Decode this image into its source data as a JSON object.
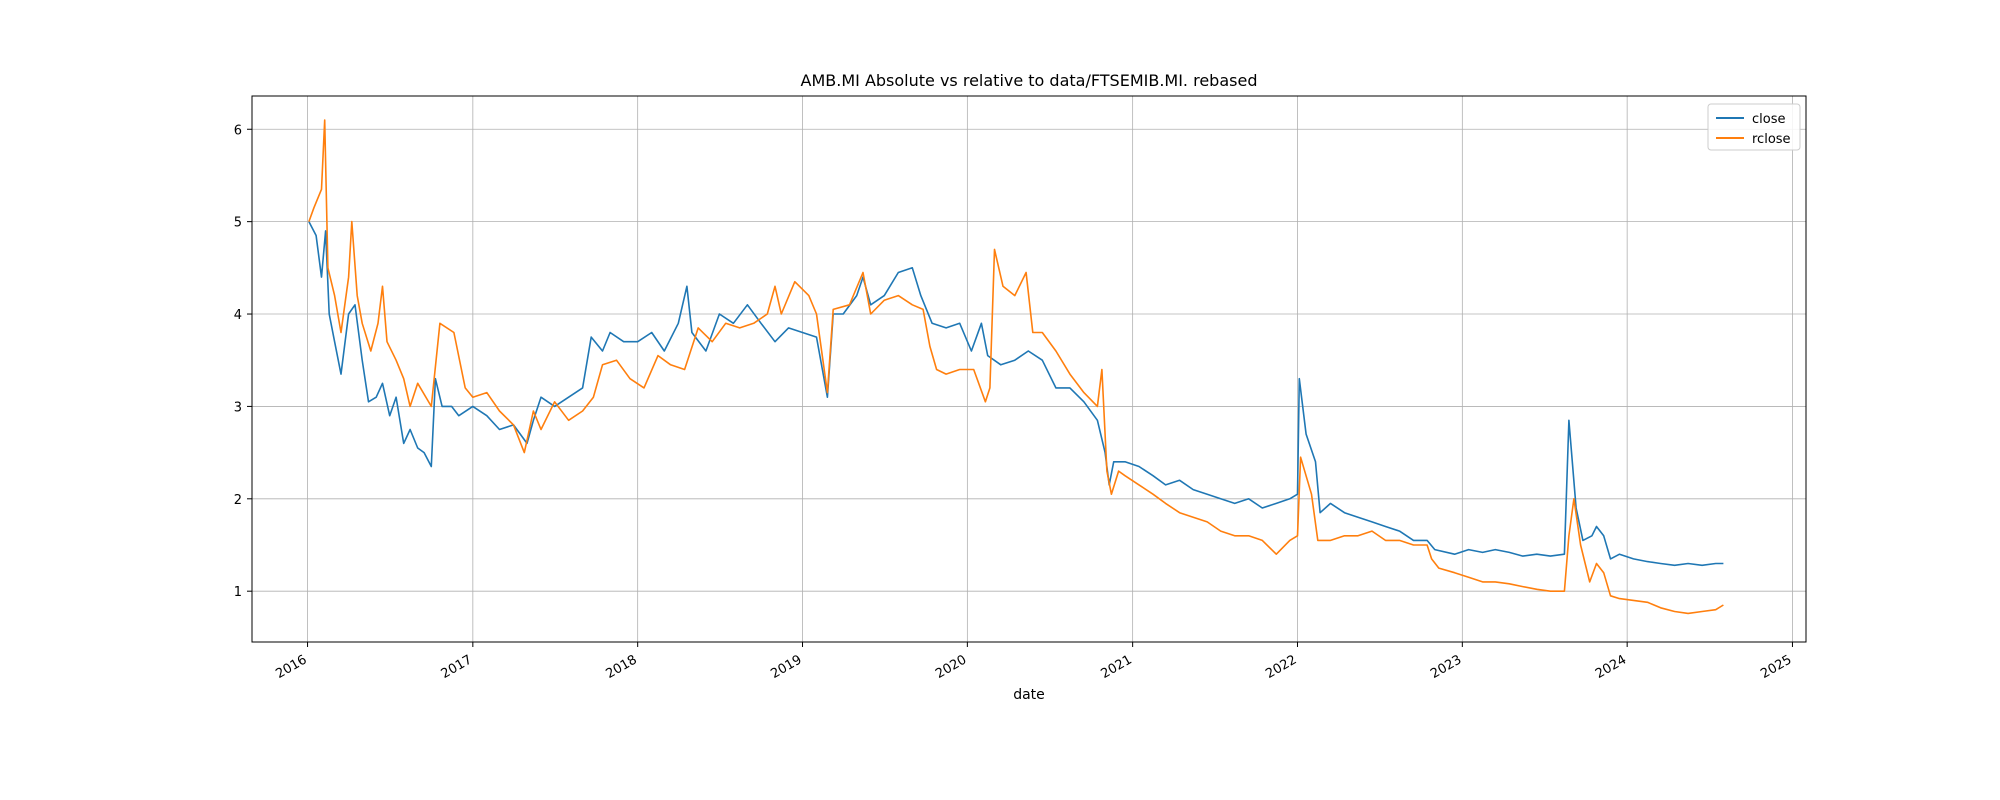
{
  "chart_data": {
    "type": "line",
    "title": "AMB.MI Absolute vs relative to data/FTSEMIB.MI. rebased",
    "xlabel": "date",
    "ylabel": "",
    "xlim": [
      "2015-08-31",
      "2025-01-31"
    ],
    "ylim": [
      0.45,
      6.36
    ],
    "x_ticks": [
      "2016",
      "2017",
      "2018",
      "2019",
      "2020",
      "2021",
      "2022",
      "2023",
      "2024",
      "2025"
    ],
    "y_ticks": [
      1,
      2,
      3,
      4,
      5,
      6
    ],
    "grid": true,
    "legend_position": "top-right",
    "series": [
      {
        "name": "close",
        "color": "#1f77b4",
        "points": [
          [
            "2016-01-04",
            5.0
          ],
          [
            "2016-01-20",
            4.85
          ],
          [
            "2016-02-01",
            4.4
          ],
          [
            "2016-02-10",
            4.9
          ],
          [
            "2016-02-18",
            4.0
          ],
          [
            "2016-03-01",
            3.7
          ],
          [
            "2016-03-15",
            3.35
          ],
          [
            "2016-04-01",
            4.0
          ],
          [
            "2016-04-15",
            4.1
          ],
          [
            "2016-05-01",
            3.5
          ],
          [
            "2016-05-15",
            3.05
          ],
          [
            "2016-06-01",
            3.1
          ],
          [
            "2016-06-15",
            3.25
          ],
          [
            "2016-07-01",
            2.9
          ],
          [
            "2016-07-15",
            3.1
          ],
          [
            "2016-08-01",
            2.6
          ],
          [
            "2016-08-15",
            2.75
          ],
          [
            "2016-09-01",
            2.55
          ],
          [
            "2016-09-15",
            2.5
          ],
          [
            "2016-10-01",
            2.35
          ],
          [
            "2016-10-10",
            3.3
          ],
          [
            "2016-10-25",
            3.0
          ],
          [
            "2016-11-15",
            3.0
          ],
          [
            "2016-12-01",
            2.9
          ],
          [
            "2017-01-01",
            3.0
          ],
          [
            "2017-02-01",
            2.9
          ],
          [
            "2017-03-01",
            2.75
          ],
          [
            "2017-04-01",
            2.8
          ],
          [
            "2017-05-01",
            2.6
          ],
          [
            "2017-05-15",
            2.85
          ],
          [
            "2017-06-01",
            3.1
          ],
          [
            "2017-07-01",
            3.0
          ],
          [
            "2017-08-01",
            3.1
          ],
          [
            "2017-09-01",
            3.2
          ],
          [
            "2017-09-20",
            3.75
          ],
          [
            "2017-10-15",
            3.6
          ],
          [
            "2017-11-01",
            3.8
          ],
          [
            "2017-12-01",
            3.7
          ],
          [
            "2018-01-01",
            3.7
          ],
          [
            "2018-02-01",
            3.8
          ],
          [
            "2018-03-01",
            3.6
          ],
          [
            "2018-04-01",
            3.9
          ],
          [
            "2018-04-20",
            4.3
          ],
          [
            "2018-05-01",
            3.8
          ],
          [
            "2018-06-01",
            3.6
          ],
          [
            "2018-07-01",
            4.0
          ],
          [
            "2018-08-01",
            3.9
          ],
          [
            "2018-09-01",
            4.1
          ],
          [
            "2018-10-01",
            3.9
          ],
          [
            "2018-11-01",
            3.7
          ],
          [
            "2018-12-01",
            3.85
          ],
          [
            "2019-01-01",
            3.8
          ],
          [
            "2019-02-01",
            3.75
          ],
          [
            "2019-02-25",
            3.1
          ],
          [
            "2019-03-10",
            4.0
          ],
          [
            "2019-04-01",
            4.0
          ],
          [
            "2019-05-01",
            4.2
          ],
          [
            "2019-05-15",
            4.4
          ],
          [
            "2019-06-01",
            4.1
          ],
          [
            "2019-07-01",
            4.2
          ],
          [
            "2019-08-01",
            4.45
          ],
          [
            "2019-09-01",
            4.5
          ],
          [
            "2019-09-20",
            4.2
          ],
          [
            "2019-10-15",
            3.9
          ],
          [
            "2019-11-15",
            3.85
          ],
          [
            "2019-12-15",
            3.9
          ],
          [
            "2020-01-10",
            3.6
          ],
          [
            "2020-02-01",
            3.9
          ],
          [
            "2020-02-15",
            3.55
          ],
          [
            "2020-03-15",
            3.45
          ],
          [
            "2020-04-15",
            3.5
          ],
          [
            "2020-05-15",
            3.6
          ],
          [
            "2020-06-15",
            3.5
          ],
          [
            "2020-07-15",
            3.2
          ],
          [
            "2020-08-15",
            3.2
          ],
          [
            "2020-09-15",
            3.05
          ],
          [
            "2020-10-15",
            2.85
          ],
          [
            "2020-11-01",
            2.5
          ],
          [
            "2020-11-10",
            2.15
          ],
          [
            "2020-11-20",
            2.4
          ],
          [
            "2020-12-15",
            2.4
          ],
          [
            "2021-01-15",
            2.35
          ],
          [
            "2021-02-15",
            2.25
          ],
          [
            "2021-03-15",
            2.15
          ],
          [
            "2021-04-15",
            2.2
          ],
          [
            "2021-05-15",
            2.1
          ],
          [
            "2021-06-15",
            2.05
          ],
          [
            "2021-07-15",
            2.0
          ],
          [
            "2021-08-15",
            1.95
          ],
          [
            "2021-09-15",
            2.0
          ],
          [
            "2021-10-15",
            1.9
          ],
          [
            "2021-11-15",
            1.95
          ],
          [
            "2021-12-15",
            2.0
          ],
          [
            "2022-01-01",
            2.05
          ],
          [
            "2022-01-05",
            3.3
          ],
          [
            "2022-01-20",
            2.7
          ],
          [
            "2022-02-10",
            2.4
          ],
          [
            "2022-02-20",
            1.85
          ],
          [
            "2022-03-15",
            1.95
          ],
          [
            "2022-04-15",
            1.85
          ],
          [
            "2022-05-15",
            1.8
          ],
          [
            "2022-06-15",
            1.75
          ],
          [
            "2022-07-15",
            1.7
          ],
          [
            "2022-08-15",
            1.65
          ],
          [
            "2022-09-15",
            1.55
          ],
          [
            "2022-10-15",
            1.55
          ],
          [
            "2022-11-01",
            1.45
          ],
          [
            "2022-12-15",
            1.4
          ],
          [
            "2023-01-15",
            1.45
          ],
          [
            "2023-02-15",
            1.42
          ],
          [
            "2023-03-15",
            1.45
          ],
          [
            "2023-04-15",
            1.42
          ],
          [
            "2023-05-15",
            1.38
          ],
          [
            "2023-06-15",
            1.4
          ],
          [
            "2023-07-15",
            1.38
          ],
          [
            "2023-08-15",
            1.4
          ],
          [
            "2023-08-25",
            2.85
          ],
          [
            "2023-09-10",
            1.9
          ],
          [
            "2023-09-25",
            1.55
          ],
          [
            "2023-10-15",
            1.6
          ],
          [
            "2023-10-25",
            1.7
          ],
          [
            "2023-11-10",
            1.6
          ],
          [
            "2023-11-25",
            1.35
          ],
          [
            "2023-12-15",
            1.4
          ],
          [
            "2024-01-15",
            1.35
          ],
          [
            "2024-02-15",
            1.32
          ],
          [
            "2024-03-15",
            1.3
          ],
          [
            "2024-04-15",
            1.28
          ],
          [
            "2024-05-15",
            1.3
          ],
          [
            "2024-06-15",
            1.28
          ],
          [
            "2024-07-15",
            1.3
          ],
          [
            "2024-08-01",
            1.3
          ]
        ]
      },
      {
        "name": "rclose",
        "color": "#ff7f0e",
        "points": [
          [
            "2016-01-04",
            5.0
          ],
          [
            "2016-01-15",
            5.15
          ],
          [
            "2016-02-01",
            5.35
          ],
          [
            "2016-02-08",
            6.1
          ],
          [
            "2016-02-15",
            4.5
          ],
          [
            "2016-03-01",
            4.2
          ],
          [
            "2016-03-15",
            3.8
          ],
          [
            "2016-04-01",
            4.4
          ],
          [
            "2016-04-08",
            5.0
          ],
          [
            "2016-04-20",
            4.2
          ],
          [
            "2016-05-01",
            3.9
          ],
          [
            "2016-05-20",
            3.6
          ],
          [
            "2016-06-05",
            3.9
          ],
          [
            "2016-06-15",
            4.3
          ],
          [
            "2016-06-25",
            3.7
          ],
          [
            "2016-07-15",
            3.5
          ],
          [
            "2016-08-01",
            3.3
          ],
          [
            "2016-08-15",
            3.0
          ],
          [
            "2016-09-01",
            3.25
          ],
          [
            "2016-10-01",
            3.0
          ],
          [
            "2016-10-20",
            3.9
          ],
          [
            "2016-11-20",
            3.8
          ],
          [
            "2016-12-15",
            3.2
          ],
          [
            "2017-01-01",
            3.1
          ],
          [
            "2017-02-01",
            3.15
          ],
          [
            "2017-03-01",
            2.95
          ],
          [
            "2017-04-01",
            2.8
          ],
          [
            "2017-04-25",
            2.5
          ],
          [
            "2017-05-15",
            2.95
          ],
          [
            "2017-06-01",
            2.75
          ],
          [
            "2017-07-01",
            3.05
          ],
          [
            "2017-08-01",
            2.85
          ],
          [
            "2017-09-01",
            2.95
          ],
          [
            "2017-09-25",
            3.1
          ],
          [
            "2017-10-15",
            3.45
          ],
          [
            "2017-11-15",
            3.5
          ],
          [
            "2017-12-15",
            3.3
          ],
          [
            "2018-01-15",
            3.2
          ],
          [
            "2018-02-15",
            3.55
          ],
          [
            "2018-03-15",
            3.45
          ],
          [
            "2018-04-15",
            3.4
          ],
          [
            "2018-05-15",
            3.85
          ],
          [
            "2018-06-15",
            3.7
          ],
          [
            "2018-07-15",
            3.9
          ],
          [
            "2018-08-15",
            3.85
          ],
          [
            "2018-09-15",
            3.9
          ],
          [
            "2018-10-15",
            4.0
          ],
          [
            "2018-11-01",
            4.3
          ],
          [
            "2018-11-15",
            4.0
          ],
          [
            "2018-12-15",
            4.35
          ],
          [
            "2019-01-15",
            4.2
          ],
          [
            "2019-02-01",
            4.0
          ],
          [
            "2019-02-25",
            3.15
          ],
          [
            "2019-03-10",
            4.05
          ],
          [
            "2019-04-15",
            4.1
          ],
          [
            "2019-05-15",
            4.45
          ],
          [
            "2019-06-01",
            4.0
          ],
          [
            "2019-07-01",
            4.15
          ],
          [
            "2019-08-01",
            4.2
          ],
          [
            "2019-09-01",
            4.1
          ],
          [
            "2019-09-25",
            4.05
          ],
          [
            "2019-10-10",
            3.65
          ],
          [
            "2019-10-25",
            3.4
          ],
          [
            "2019-11-15",
            3.35
          ],
          [
            "2019-12-15",
            3.4
          ],
          [
            "2020-01-15",
            3.4
          ],
          [
            "2020-02-10",
            3.05
          ],
          [
            "2020-02-20",
            3.2
          ],
          [
            "2020-03-01",
            4.7
          ],
          [
            "2020-03-20",
            4.3
          ],
          [
            "2020-04-15",
            4.2
          ],
          [
            "2020-05-10",
            4.45
          ],
          [
            "2020-05-25",
            3.8
          ],
          [
            "2020-06-15",
            3.8
          ],
          [
            "2020-07-15",
            3.6
          ],
          [
            "2020-08-15",
            3.35
          ],
          [
            "2020-09-15",
            3.15
          ],
          [
            "2020-10-15",
            3.0
          ],
          [
            "2020-10-25",
            3.4
          ],
          [
            "2020-11-05",
            2.3
          ],
          [
            "2020-11-15",
            2.05
          ],
          [
            "2020-12-01",
            2.3
          ],
          [
            "2020-12-15",
            2.25
          ],
          [
            "2021-01-15",
            2.15
          ],
          [
            "2021-02-15",
            2.05
          ],
          [
            "2021-03-15",
            1.95
          ],
          [
            "2021-04-15",
            1.85
          ],
          [
            "2021-05-15",
            1.8
          ],
          [
            "2021-06-15",
            1.75
          ],
          [
            "2021-07-15",
            1.65
          ],
          [
            "2021-08-15",
            1.6
          ],
          [
            "2021-09-15",
            1.6
          ],
          [
            "2021-10-15",
            1.55
          ],
          [
            "2021-11-15",
            1.4
          ],
          [
            "2021-12-15",
            1.55
          ],
          [
            "2022-01-01",
            1.6
          ],
          [
            "2022-01-08",
            2.45
          ],
          [
            "2022-02-01",
            2.05
          ],
          [
            "2022-02-15",
            1.55
          ],
          [
            "2022-03-15",
            1.55
          ],
          [
            "2022-04-15",
            1.6
          ],
          [
            "2022-05-15",
            1.6
          ],
          [
            "2022-06-15",
            1.65
          ],
          [
            "2022-07-15",
            1.55
          ],
          [
            "2022-08-15",
            1.55
          ],
          [
            "2022-09-15",
            1.5
          ],
          [
            "2022-10-15",
            1.5
          ],
          [
            "2022-10-25",
            1.35
          ],
          [
            "2022-11-10",
            1.25
          ],
          [
            "2022-12-15",
            1.2
          ],
          [
            "2023-01-15",
            1.15
          ],
          [
            "2023-02-15",
            1.1
          ],
          [
            "2023-03-15",
            1.1
          ],
          [
            "2023-04-15",
            1.08
          ],
          [
            "2023-05-15",
            1.05
          ],
          [
            "2023-06-15",
            1.02
          ],
          [
            "2023-07-15",
            1.0
          ],
          [
            "2023-08-15",
            1.0
          ],
          [
            "2023-08-25",
            1.6
          ],
          [
            "2023-09-05",
            2.0
          ],
          [
            "2023-09-20",
            1.5
          ],
          [
            "2023-10-10",
            1.1
          ],
          [
            "2023-10-25",
            1.3
          ],
          [
            "2023-11-10",
            1.2
          ],
          [
            "2023-11-25",
            0.95
          ],
          [
            "2023-12-15",
            0.92
          ],
          [
            "2024-01-15",
            0.9
          ],
          [
            "2024-02-15",
            0.88
          ],
          [
            "2024-03-15",
            0.82
          ],
          [
            "2024-04-15",
            0.78
          ],
          [
            "2024-05-15",
            0.76
          ],
          [
            "2024-06-15",
            0.78
          ],
          [
            "2024-07-15",
            0.8
          ],
          [
            "2024-08-01",
            0.85
          ]
        ]
      }
    ]
  }
}
